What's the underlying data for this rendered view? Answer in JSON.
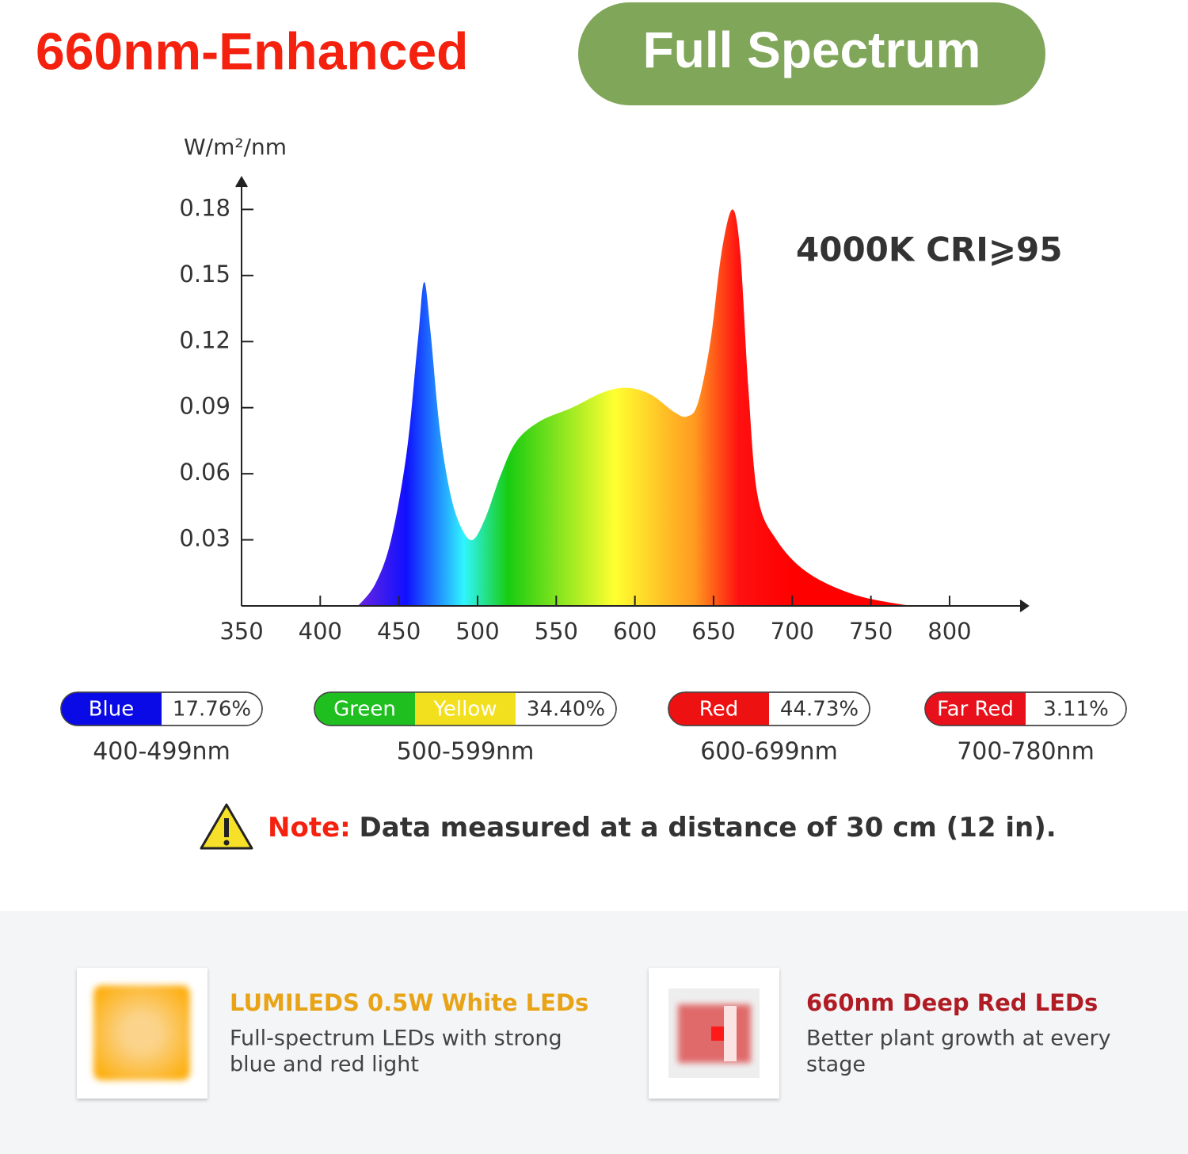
{
  "header": {
    "title": "660nm-Enhanced",
    "badge": "Full Spectrum"
  },
  "chart_data": {
    "type": "area",
    "y_axis_label": "W/m²/nm",
    "annotation": "4000K CRI⩾95",
    "x": [
      424,
      435,
      445,
      455,
      462,
      466,
      470,
      476,
      483,
      490,
      497,
      505,
      515,
      525,
      540,
      560,
      580,
      595,
      610,
      625,
      633,
      640,
      648,
      655,
      662,
      667,
      672,
      678,
      690,
      710,
      740,
      775
    ],
    "values": [
      0,
      0.01,
      0.03,
      0.07,
      0.12,
      0.147,
      0.125,
      0.08,
      0.05,
      0.035,
      0.03,
      0.04,
      0.06,
      0.075,
      0.084,
      0.09,
      0.097,
      0.099,
      0.096,
      0.088,
      0.086,
      0.092,
      0.12,
      0.16,
      0.18,
      0.16,
      0.1,
      0.05,
      0.03,
      0.015,
      0.005,
      0
    ],
    "xlim": [
      350,
      850
    ],
    "xticks": [
      350,
      400,
      450,
      500,
      550,
      600,
      650,
      700,
      750,
      800
    ],
    "ylim": [
      0,
      0.19
    ],
    "yticks": [
      0.03,
      0.06,
      0.09,
      0.12,
      0.15,
      0.18
    ]
  },
  "bands": [
    {
      "names": [
        "Blue"
      ],
      "colors": [
        "#0a0ae6"
      ],
      "percent": "17.76%",
      "range": "400-499nm"
    },
    {
      "names": [
        "Green",
        "Yellow"
      ],
      "colors": [
        "#1fbf1f",
        "#f2e01e"
      ],
      "percent": "34.40%",
      "range": "500-599nm"
    },
    {
      "names": [
        "Red"
      ],
      "colors": [
        "#ee1111"
      ],
      "percent": "44.73%",
      "range": "600-699nm"
    },
    {
      "names": [
        "Far Red"
      ],
      "colors": [
        "#e8101a"
      ],
      "percent": "3.11%",
      "range": "700-780nm"
    }
  ],
  "note": {
    "label": "Note:",
    "text": "Data measured at a distance of 30 cm (12 in)."
  },
  "features": [
    {
      "title": "LUMILEDS 0.5W White LEDs",
      "lines": [
        "Full-spectrum LEDs with strong",
        "blue and red light"
      ]
    },
    {
      "title": "660nm Deep Red LEDs",
      "lines": [
        "Better plant growth at every",
        "stage"
      ]
    }
  ]
}
